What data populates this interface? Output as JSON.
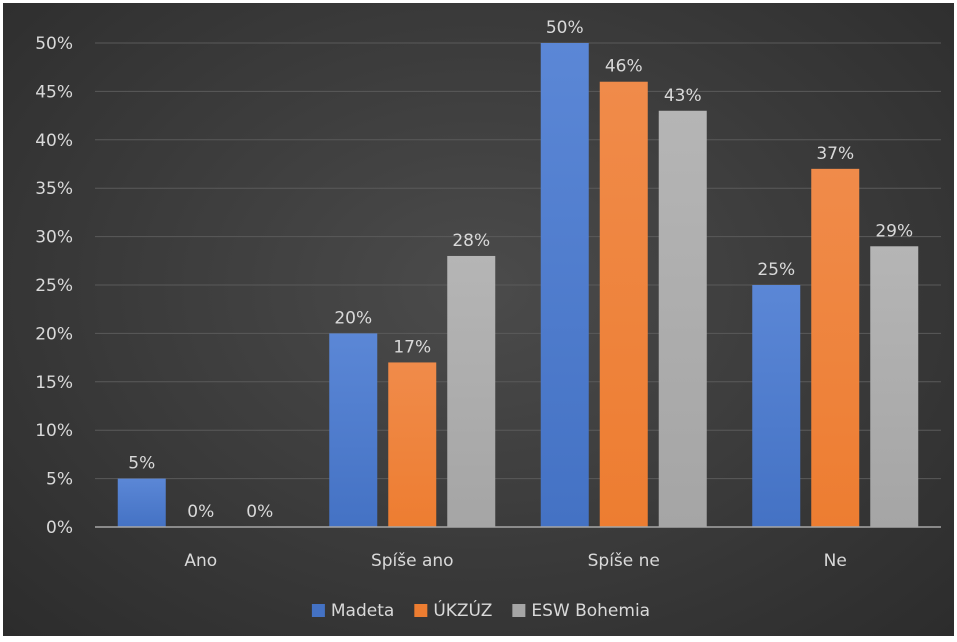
{
  "chart_data": {
    "type": "bar",
    "title": "",
    "xlabel": "",
    "ylabel": "",
    "categories": [
      "Ano",
      "Spíše ano",
      "Spíše ne",
      "Ne"
    ],
    "series": [
      {
        "name": "Madeta",
        "values": [
          5,
          20,
          50,
          25
        ],
        "color": "#4472c4",
        "color_light": "#5b87d6"
      },
      {
        "name": "ÚKZÚZ",
        "values": [
          0,
          17,
          46,
          37
        ],
        "color": "#ed7d31",
        "color_light": "#f08b4a"
      },
      {
        "name": "ESW Bohemia",
        "values": [
          0,
          28,
          43,
          29
        ],
        "color": "#a5a5a5",
        "color_light": "#b5b5b5"
      }
    ],
    "ylim": [
      0,
      50
    ],
    "yticks": [
      "0%",
      "5%",
      "10%",
      "15%",
      "20%",
      "25%",
      "30%",
      "35%",
      "40%",
      "45%",
      "50%"
    ],
    "value_suffix": "%",
    "grid": true,
    "legend_position": "bottom"
  }
}
